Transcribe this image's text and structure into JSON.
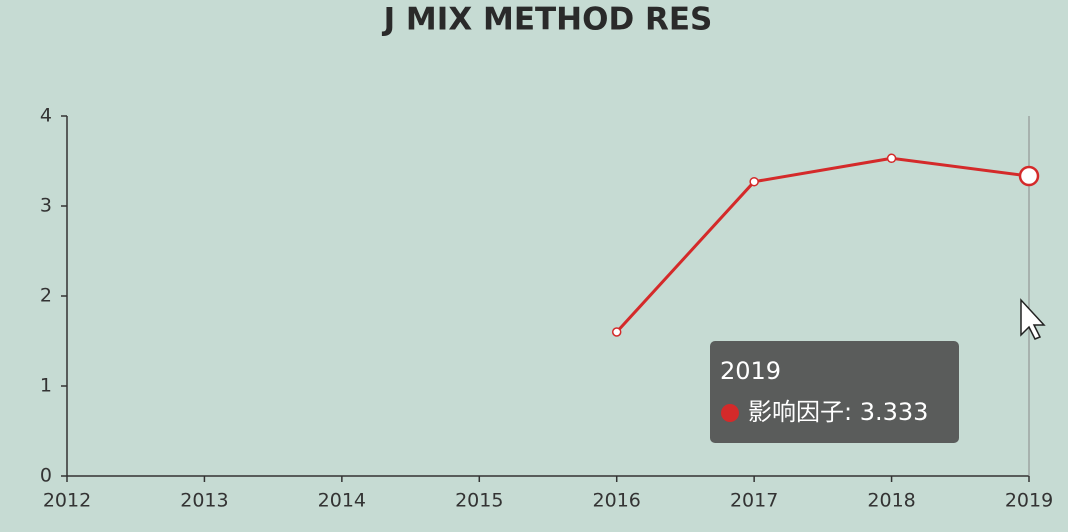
{
  "chart_data": {
    "type": "line",
    "title": "J MIX METHOD RES",
    "categories": [
      "2012",
      "2013",
      "2014",
      "2015",
      "2016",
      "2017",
      "2018",
      "2019"
    ],
    "series": [
      {
        "name": "影响因子",
        "color": "#d42a2a",
        "values": [
          null,
          null,
          null,
          null,
          1.6,
          3.27,
          3.53,
          3.333
        ]
      }
    ],
    "ylim": [
      0,
      4
    ],
    "yticks": [
      0,
      1,
      2,
      3,
      4
    ],
    "grid": false,
    "tooltip": {
      "title": "2019",
      "text": "影响因子: 3.333"
    }
  }
}
